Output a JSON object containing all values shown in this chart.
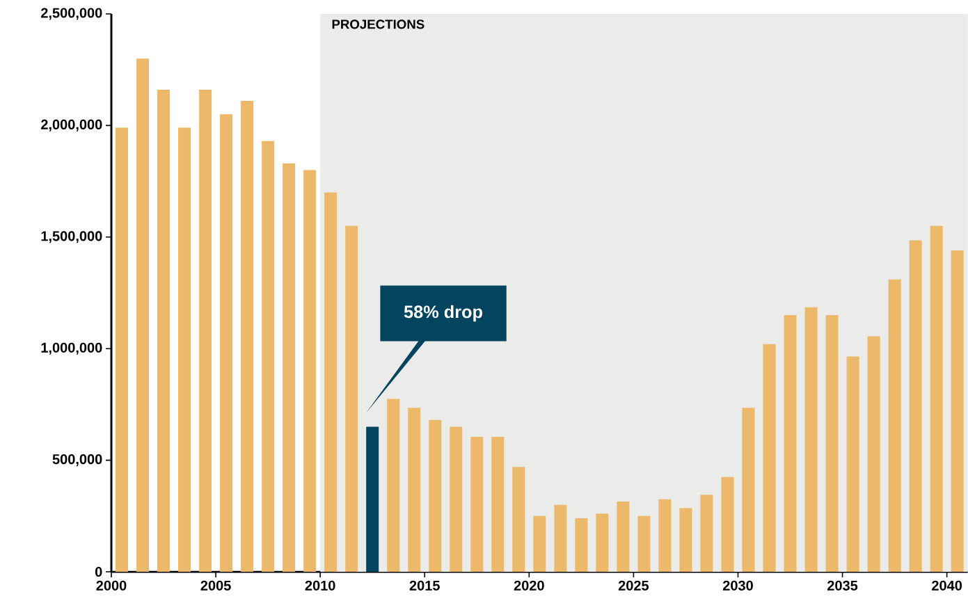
{
  "chart_data": {
    "type": "bar",
    "x": [
      "2000-07",
      "2001-07",
      "2002-07",
      "2003-07",
      "2004-07",
      "2005-07",
      "2006-07",
      "2007-07",
      "2008-07",
      "2009-07",
      "2010-07",
      "2011-07",
      "2012-07",
      "2013-07",
      "2014-07",
      "2015-07",
      "2016-07",
      "2017-07",
      "2018-07",
      "2019-07",
      "2020-07",
      "2021-07",
      "2022-07",
      "2023-07",
      "2024-07",
      "2025-07",
      "2026-07",
      "2027-07",
      "2028-07",
      "2029-07",
      "2030-07",
      "2031-07",
      "2032-07",
      "2033-07",
      "2034-07",
      "2035-07",
      "2036-07",
      "2037-07",
      "2038-07",
      "2039-07",
      "2040-07"
    ],
    "values": [
      1990000,
      2300000,
      2160000,
      1990000,
      2160000,
      2050000,
      2110000,
      1930000,
      1830000,
      1800000,
      1700000,
      1550000,
      650000,
      775000,
      735000,
      680000,
      650000,
      605000,
      605000,
      470000,
      250000,
      300000,
      240000,
      260000,
      315000,
      250000,
      325000,
      285000,
      345000,
      425000,
      735000,
      1020000,
      1150000,
      1185000,
      1150000,
      965000,
      1055000,
      1310000,
      1485000,
      1550000,
      1440000
    ],
    "colors": [
      "#ecb96a",
      "#ecb96a",
      "#ecb96a",
      "#ecb96a",
      "#ecb96a",
      "#ecb96a",
      "#ecb96a",
      "#ecb96a",
      "#ecb96a",
      "#ecb96a",
      "#ecb96a",
      "#ecb96a",
      "#03445f",
      "#ecb96a",
      "#ecb96a",
      "#ecb96a",
      "#ecb96a",
      "#ecb96a",
      "#ecb96a",
      "#ecb96a",
      "#ecb96a",
      "#ecb96a",
      "#ecb96a",
      "#ecb96a",
      "#ecb96a",
      "#ecb96a",
      "#ecb96a",
      "#ecb96a",
      "#ecb96a",
      "#ecb96a",
      "#ecb96a",
      "#ecb96a",
      "#ecb96a",
      "#ecb96a",
      "#ecb96a",
      "#ecb96a",
      "#ecb96a",
      "#ecb96a",
      "#ecb96a",
      "#ecb96a",
      "#ecb96a"
    ],
    "xlim": [
      "2000",
      "2041"
    ],
    "xticks": [
      "2000",
      "2005",
      "2010",
      "2015",
      "2020",
      "2025",
      "2030",
      "2035",
      "2040"
    ],
    "ylim": [
      0,
      2500000
    ],
    "yticks": [
      {
        "value": 0,
        "label": "0"
      },
      {
        "value": 500000,
        "label": "500,000"
      },
      {
        "value": 1000000,
        "label": "1,000,000"
      },
      {
        "value": 1500000,
        "label": "1,500,000"
      },
      {
        "value": 2000000,
        "label": "2,000,000"
      },
      {
        "value": 2500000,
        "label": "2,500,000"
      }
    ],
    "bands": [
      {
        "axis": "x",
        "from": "2010",
        "to": "2041",
        "label": "PROJECTIONS",
        "color": "#ebebe9"
      }
    ],
    "annotations": [
      "58% drop"
    ],
    "grid": false
  }
}
